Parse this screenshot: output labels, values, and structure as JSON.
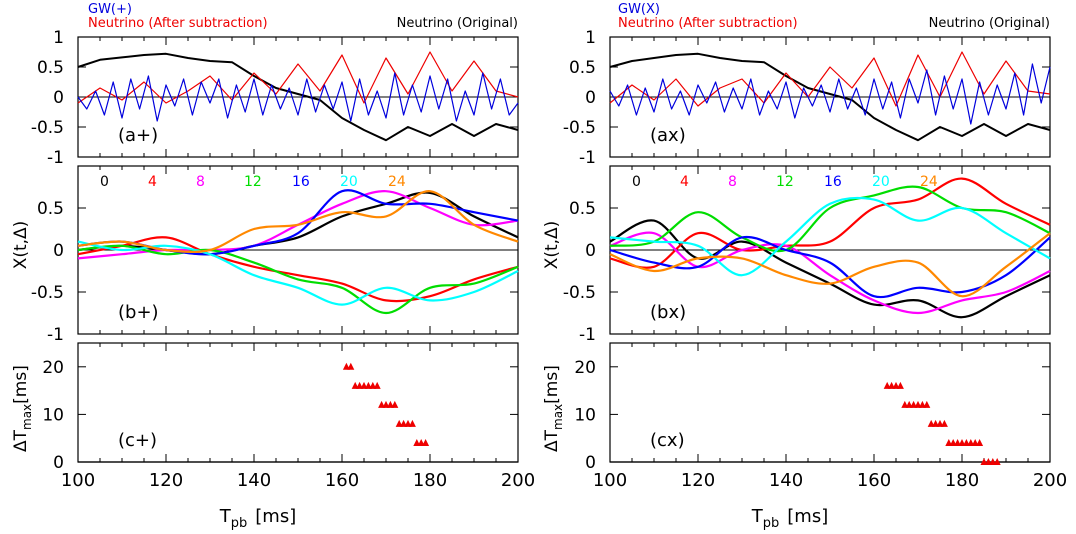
{
  "figure": {
    "xlabel_main": "T",
    "xlabel_sub": "pb",
    "xlabel_unit": "[ms]",
    "ylabel_b": "X(t,Δ)",
    "ylabel_c_main": "ΔT",
    "ylabel_c_sub": "max",
    "ylabel_c_unit": "[ms]"
  },
  "legend": {
    "gw_left": "GW(+)",
    "gw_right": "GW(X)",
    "neutrino_sub": "Neutrino (After subtraction)",
    "neutrino_orig": "Neutrino (Original)",
    "delta_labels": [
      "0",
      "4",
      "8",
      "12",
      "16",
      "20",
      "24"
    ]
  },
  "colors": {
    "gw": "#0000dd",
    "neutrino_sub": "#ee0000",
    "neutrino_orig": "#000000",
    "delta": [
      "#000000",
      "#ff0000",
      "#ff00ff",
      "#00dd00",
      "#0000ff",
      "#00ffff",
      "#ff8800"
    ],
    "marker": "#ee0000"
  },
  "chart_data": [
    {
      "type": "line",
      "panel_label": "(a+)",
      "xlim": [
        100,
        200
      ],
      "ylim": [
        -1,
        1
      ],
      "yticks": [
        -1,
        -0.5,
        0,
        0.5,
        1
      ],
      "series": [
        {
          "role": "neutrino_orig",
          "x": [
            100,
            105,
            110,
            115,
            120,
            125,
            130,
            135,
            140,
            145,
            150,
            155,
            160,
            165,
            170,
            175,
            180,
            185,
            190,
            195,
            200
          ],
          "values": [
            0.5,
            0.62,
            0.66,
            0.7,
            0.72,
            0.65,
            0.6,
            0.58,
            0.35,
            0.15,
            0.05,
            -0.05,
            -0.35,
            -0.55,
            -0.72,
            -0.5,
            -0.65,
            -0.45,
            -0.65,
            -0.45,
            -0.55
          ]
        },
        {
          "role": "neutrino_sub",
          "x": [
            100,
            105,
            110,
            115,
            120,
            125,
            130,
            135,
            140,
            145,
            150,
            155,
            160,
            165,
            170,
            175,
            180,
            185,
            190,
            195,
            200
          ],
          "values": [
            -0.1,
            0.15,
            -0.05,
            0.25,
            -0.1,
            0.1,
            0.35,
            -0.05,
            0.4,
            0.05,
            0.55,
            0.1,
            0.7,
            -0.1,
            0.65,
            0.05,
            0.75,
            0.1,
            0.6,
            0.1,
            0.0
          ]
        },
        {
          "role": "gw",
          "x": [
            100,
            102,
            104,
            106,
            108,
            110,
            112,
            114,
            116,
            118,
            120,
            122,
            124,
            126,
            128,
            130,
            132,
            134,
            136,
            138,
            140,
            142,
            144,
            146,
            148,
            150,
            152,
            154,
            156,
            158,
            160,
            162,
            164,
            166,
            168,
            170,
            172,
            174,
            176,
            178,
            180,
            182,
            184,
            186,
            188,
            190,
            192,
            194,
            196,
            198,
            200
          ],
          "values": [
            0.0,
            -0.2,
            0.1,
            -0.3,
            0.25,
            -0.35,
            0.3,
            -0.2,
            0.35,
            -0.4,
            0.2,
            -0.15,
            0.3,
            -0.3,
            0.25,
            -0.1,
            0.3,
            -0.35,
            0.2,
            -0.25,
            0.3,
            -0.3,
            0.2,
            -0.2,
            0.15,
            -0.3,
            0.3,
            -0.25,
            0.2,
            -0.2,
            0.25,
            -0.4,
            0.3,
            -0.3,
            0.1,
            -0.35,
            0.4,
            -0.3,
            0.2,
            -0.25,
            0.35,
            -0.2,
            0.3,
            -0.4,
            0.1,
            -0.3,
            0.4,
            -0.2,
            0.3,
            -0.3,
            -0.1
          ]
        }
      ]
    },
    {
      "type": "line",
      "panel_label": "(ax)",
      "xlim": [
        100,
        200
      ],
      "ylim": [
        -1,
        1
      ],
      "yticks": [
        -1,
        -0.5,
        0,
        0.5,
        1
      ],
      "series": [
        {
          "role": "neutrino_orig",
          "x": [
            100,
            105,
            110,
            115,
            120,
            125,
            130,
            135,
            140,
            145,
            150,
            155,
            160,
            165,
            170,
            175,
            180,
            185,
            190,
            195,
            200
          ],
          "values": [
            0.5,
            0.6,
            0.65,
            0.7,
            0.72,
            0.65,
            0.6,
            0.58,
            0.35,
            0.15,
            0.05,
            -0.05,
            -0.35,
            -0.55,
            -0.72,
            -0.5,
            -0.65,
            -0.45,
            -0.65,
            -0.45,
            -0.55
          ]
        },
        {
          "role": "neutrino_sub",
          "x": [
            100,
            105,
            110,
            115,
            120,
            125,
            130,
            135,
            140,
            145,
            150,
            155,
            160,
            165,
            170,
            175,
            180,
            185,
            190,
            195,
            200
          ],
          "values": [
            -0.1,
            0.2,
            -0.05,
            0.3,
            -0.15,
            0.15,
            0.3,
            -0.1,
            0.4,
            0.0,
            0.5,
            0.15,
            0.65,
            -0.15,
            0.7,
            0.0,
            0.75,
            0.05,
            0.6,
            0.1,
            0.05
          ]
        },
        {
          "role": "gw",
          "x": [
            100,
            102,
            104,
            106,
            108,
            110,
            112,
            114,
            116,
            118,
            120,
            122,
            124,
            126,
            128,
            130,
            132,
            134,
            136,
            138,
            140,
            142,
            144,
            146,
            148,
            150,
            152,
            154,
            156,
            158,
            160,
            162,
            164,
            166,
            168,
            170,
            172,
            174,
            176,
            178,
            180,
            182,
            184,
            186,
            188,
            190,
            192,
            194,
            196,
            198,
            200
          ],
          "values": [
            0.1,
            -0.15,
            0.2,
            -0.3,
            0.15,
            -0.25,
            0.3,
            -0.2,
            0.1,
            -0.3,
            0.2,
            -0.1,
            0.25,
            -0.25,
            0.15,
            -0.2,
            0.3,
            -0.3,
            0.1,
            -0.2,
            0.25,
            -0.35,
            0.15,
            -0.15,
            0.2,
            -0.25,
            0.3,
            -0.2,
            0.15,
            -0.3,
            0.3,
            -0.2,
            0.25,
            -0.35,
            0.3,
            -0.1,
            0.45,
            -0.3,
            0.35,
            -0.2,
            0.3,
            -0.45,
            0.25,
            -0.3,
            0.2,
            -0.2,
            0.4,
            -0.3,
            0.55,
            -0.1,
            0.5
          ]
        }
      ]
    },
    {
      "type": "line",
      "panel_label": "(b+)",
      "xlim": [
        100,
        200
      ],
      "ylim": [
        -1,
        1
      ],
      "yticks": [
        -1,
        -0.5,
        0,
        0.5
      ],
      "series": [
        {
          "name": "0",
          "x": [
            100,
            110,
            120,
            130,
            140,
            150,
            160,
            170,
            180,
            190,
            200
          ],
          "values": [
            0.0,
            0.05,
            0.0,
            -0.05,
            0.05,
            0.15,
            0.4,
            0.55,
            0.68,
            0.4,
            0.15
          ]
        },
        {
          "name": "4",
          "x": [
            100,
            110,
            120,
            130,
            140,
            150,
            160,
            170,
            180,
            190,
            200
          ],
          "values": [
            -0.05,
            0.05,
            0.15,
            -0.05,
            -0.2,
            -0.3,
            -0.4,
            -0.6,
            -0.55,
            -0.35,
            -0.2
          ]
        },
        {
          "name": "8",
          "x": [
            100,
            110,
            120,
            130,
            140,
            150,
            160,
            170,
            180,
            190,
            200
          ],
          "values": [
            -0.1,
            -0.05,
            0.0,
            0.0,
            0.05,
            0.3,
            0.55,
            0.7,
            0.5,
            0.3,
            0.35
          ]
        },
        {
          "name": "12",
          "x": [
            100,
            110,
            120,
            130,
            140,
            150,
            160,
            170,
            180,
            190,
            200
          ],
          "values": [
            0.0,
            0.05,
            -0.05,
            0.0,
            -0.15,
            -0.35,
            -0.45,
            -0.75,
            -0.45,
            -0.4,
            -0.2
          ]
        },
        {
          "name": "16",
          "x": [
            100,
            110,
            120,
            130,
            140,
            150,
            160,
            170,
            180,
            190,
            200
          ],
          "values": [
            0.05,
            0.1,
            0.0,
            -0.05,
            0.05,
            0.2,
            0.7,
            0.55,
            0.55,
            0.45,
            0.35
          ]
        },
        {
          "name": "20",
          "x": [
            100,
            110,
            120,
            130,
            140,
            150,
            160,
            170,
            180,
            190,
            200
          ],
          "values": [
            0.1,
            0.0,
            0.05,
            -0.05,
            -0.3,
            -0.45,
            -0.65,
            -0.45,
            -0.6,
            -0.5,
            -0.25
          ]
        },
        {
          "name": "24",
          "x": [
            100,
            110,
            120,
            130,
            140,
            150,
            160,
            170,
            180,
            190,
            200
          ],
          "values": [
            0.05,
            0.1,
            0.0,
            0.0,
            0.25,
            0.3,
            0.45,
            0.4,
            0.7,
            0.3,
            0.1
          ]
        }
      ]
    },
    {
      "type": "line",
      "panel_label": "(bx)",
      "xlim": [
        100,
        200
      ],
      "ylim": [
        -1,
        1
      ],
      "yticks": [
        -1,
        -0.5,
        0,
        0.5
      ],
      "series": [
        {
          "name": "0",
          "x": [
            100,
            110,
            120,
            130,
            140,
            150,
            160,
            170,
            180,
            190,
            200
          ],
          "values": [
            0.1,
            0.35,
            -0.1,
            0.1,
            -0.15,
            -0.4,
            -0.65,
            -0.6,
            -0.8,
            -0.55,
            -0.3
          ]
        },
        {
          "name": "4",
          "x": [
            100,
            110,
            120,
            130,
            140,
            150,
            160,
            170,
            180,
            190,
            200
          ],
          "values": [
            -0.1,
            -0.2,
            0.2,
            0.0,
            0.05,
            0.1,
            0.5,
            0.6,
            0.85,
            0.55,
            0.3
          ]
        },
        {
          "name": "8",
          "x": [
            100,
            110,
            120,
            130,
            140,
            150,
            160,
            170,
            180,
            190,
            200
          ],
          "values": [
            0.05,
            0.2,
            -0.2,
            0.0,
            0.05,
            -0.3,
            -0.6,
            -0.75,
            -0.6,
            -0.5,
            -0.25
          ]
        },
        {
          "name": "12",
          "x": [
            100,
            110,
            120,
            130,
            140,
            150,
            160,
            170,
            180,
            190,
            200
          ],
          "values": [
            0.05,
            0.1,
            0.45,
            0.15,
            0.0,
            0.5,
            0.65,
            0.75,
            0.5,
            0.45,
            0.2
          ]
        },
        {
          "name": "16",
          "x": [
            100,
            110,
            120,
            130,
            140,
            150,
            160,
            170,
            180,
            190,
            200
          ],
          "values": [
            0.0,
            -0.15,
            -0.2,
            0.15,
            0.0,
            -0.15,
            -0.55,
            -0.45,
            -0.5,
            -0.3,
            0.15
          ]
        },
        {
          "name": "20",
          "x": [
            100,
            110,
            120,
            130,
            140,
            150,
            160,
            170,
            180,
            190,
            200
          ],
          "values": [
            0.15,
            0.1,
            0.05,
            -0.3,
            0.1,
            0.55,
            0.6,
            0.35,
            0.5,
            0.2,
            -0.1
          ]
        },
        {
          "name": "24",
          "x": [
            100,
            110,
            120,
            130,
            140,
            150,
            160,
            170,
            180,
            190,
            200
          ],
          "values": [
            -0.05,
            -0.25,
            -0.1,
            -0.1,
            -0.3,
            -0.4,
            -0.2,
            -0.15,
            -0.55,
            -0.2,
            0.2
          ]
        }
      ]
    },
    {
      "type": "scatter",
      "panel_label": "(c+)",
      "xlim": [
        100,
        200
      ],
      "ylim": [
        0,
        25
      ],
      "yticks": [
        0,
        10,
        20
      ],
      "xticks": [
        100,
        120,
        140,
        160,
        180,
        200
      ],
      "points": [
        {
          "x": 161,
          "y": 20
        },
        {
          "x": 162,
          "y": 20
        },
        {
          "x": 163,
          "y": 16
        },
        {
          "x": 164,
          "y": 16
        },
        {
          "x": 165,
          "y": 16
        },
        {
          "x": 166,
          "y": 16
        },
        {
          "x": 167,
          "y": 16
        },
        {
          "x": 168,
          "y": 16
        },
        {
          "x": 169,
          "y": 12
        },
        {
          "x": 170,
          "y": 12
        },
        {
          "x": 171,
          "y": 12
        },
        {
          "x": 172,
          "y": 12
        },
        {
          "x": 173,
          "y": 8
        },
        {
          "x": 174,
          "y": 8
        },
        {
          "x": 175,
          "y": 8
        },
        {
          "x": 176,
          "y": 8
        },
        {
          "x": 177,
          "y": 4
        },
        {
          "x": 178,
          "y": 4
        },
        {
          "x": 179,
          "y": 4
        }
      ]
    },
    {
      "type": "scatter",
      "panel_label": "(cx)",
      "xlim": [
        100,
        200
      ],
      "ylim": [
        0,
        25
      ],
      "yticks": [
        0,
        10,
        20
      ],
      "xticks": [
        100,
        120,
        140,
        160,
        180,
        200
      ],
      "points": [
        {
          "x": 163,
          "y": 16
        },
        {
          "x": 164,
          "y": 16
        },
        {
          "x": 165,
          "y": 16
        },
        {
          "x": 166,
          "y": 16
        },
        {
          "x": 167,
          "y": 12
        },
        {
          "x": 168,
          "y": 12
        },
        {
          "x": 169,
          "y": 12
        },
        {
          "x": 170,
          "y": 12
        },
        {
          "x": 171,
          "y": 12
        },
        {
          "x": 172,
          "y": 12
        },
        {
          "x": 173,
          "y": 8
        },
        {
          "x": 174,
          "y": 8
        },
        {
          "x": 175,
          "y": 8
        },
        {
          "x": 176,
          "y": 8
        },
        {
          "x": 177,
          "y": 4
        },
        {
          "x": 178,
          "y": 4
        },
        {
          "x": 179,
          "y": 4
        },
        {
          "x": 180,
          "y": 4
        },
        {
          "x": 181,
          "y": 4
        },
        {
          "x": 182,
          "y": 4
        },
        {
          "x": 183,
          "y": 4
        },
        {
          "x": 184,
          "y": 4
        },
        {
          "x": 185,
          "y": 0
        },
        {
          "x": 186,
          "y": 0
        },
        {
          "x": 187,
          "y": 0
        },
        {
          "x": 188,
          "y": 0
        }
      ]
    }
  ]
}
